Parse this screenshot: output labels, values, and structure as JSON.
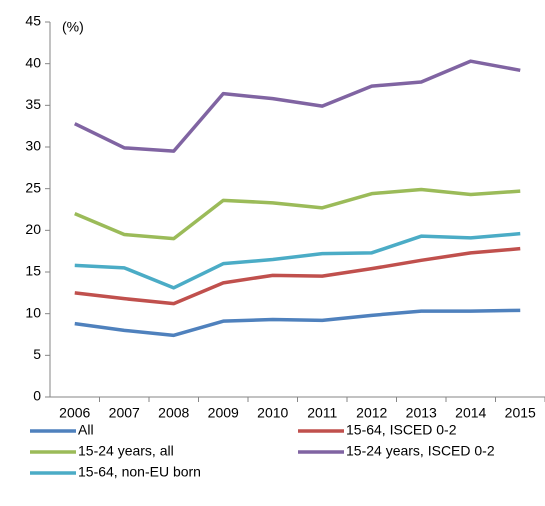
{
  "chart_data": {
    "type": "line",
    "y_unit_label": "(%)",
    "categories": [
      "2006",
      "2007",
      "2008",
      "2009",
      "2010",
      "2011",
      "2012",
      "2013",
      "2014",
      "2015"
    ],
    "ylim": [
      0,
      45
    ],
    "yticks": [
      0,
      5,
      10,
      15,
      20,
      25,
      30,
      35,
      40,
      45
    ],
    "grid": false,
    "legend": "bottom",
    "series": [
      {
        "name": "All",
        "color": "#4f81bd",
        "values": [
          8.8,
          8.0,
          7.4,
          9.1,
          9.3,
          9.2,
          9.8,
          10.3,
          10.3,
          10.4
        ]
      },
      {
        "name": "15-64, ISCED 0-2",
        "color": "#c0504d",
        "values": [
          12.5,
          11.8,
          11.2,
          13.7,
          14.6,
          14.5,
          15.4,
          16.4,
          17.3,
          17.8
        ]
      },
      {
        "name": "15-24 years, all",
        "color": "#9bbb59",
        "values": [
          22.0,
          19.5,
          19.0,
          23.6,
          23.3,
          22.7,
          24.4,
          24.9,
          24.3,
          24.7
        ]
      },
      {
        "name": "15-24 years, ISCED 0-2",
        "color": "#8064a2",
        "values": [
          32.8,
          29.9,
          29.5,
          36.4,
          35.8,
          34.9,
          37.3,
          37.8,
          40.3,
          39.2
        ]
      },
      {
        "name": "15-64, non-EU born",
        "color": "#4bacc6",
        "values": [
          15.8,
          15.5,
          13.1,
          16.0,
          16.5,
          17.2,
          17.3,
          19.3,
          19.1,
          19.6
        ]
      }
    ]
  }
}
